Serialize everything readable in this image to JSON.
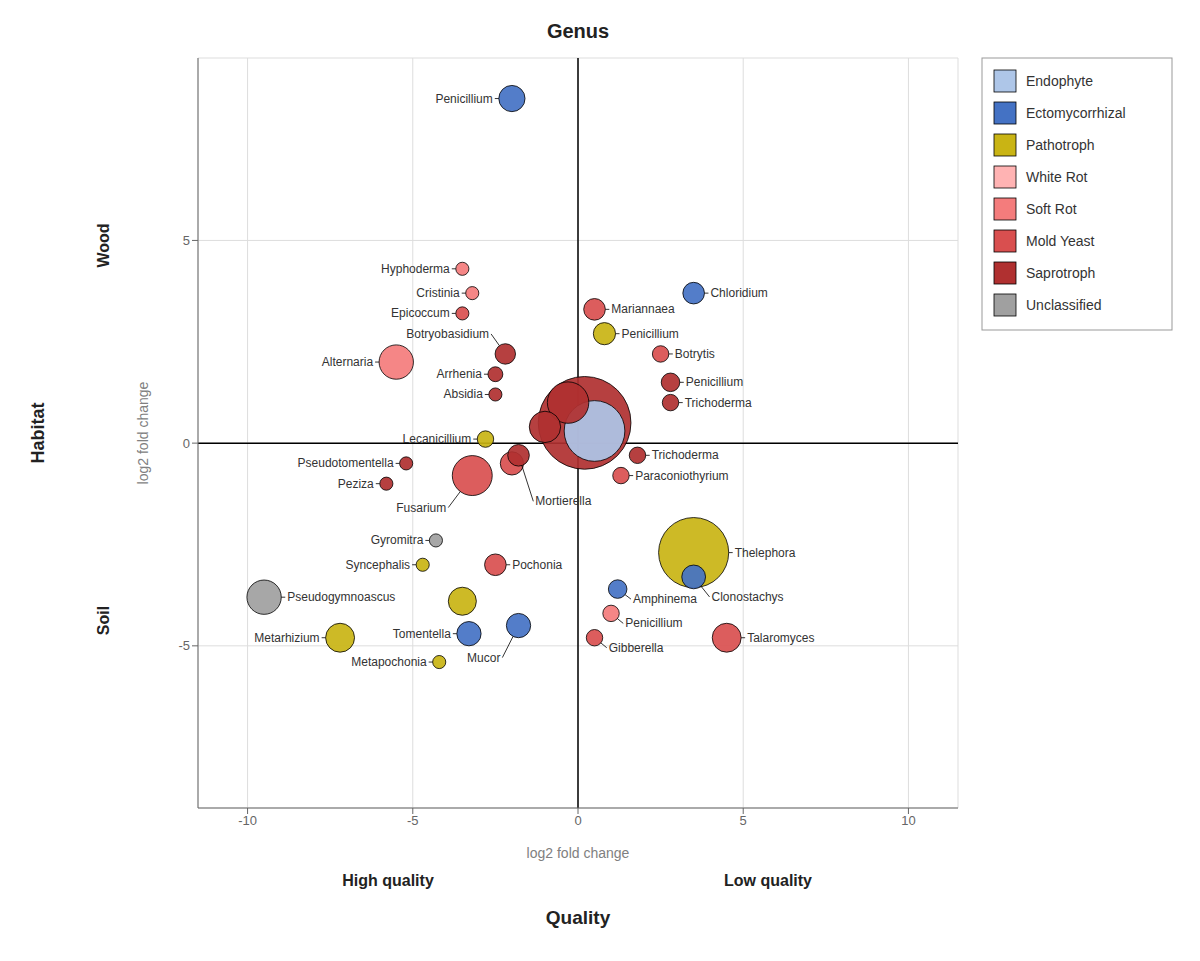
{
  "chart_data": {
    "type": "scatter",
    "title": "Genus",
    "xlabel": "log2 fold change",
    "ylabel": "log2 fold change",
    "outer_labels": {
      "left": "Habitat",
      "left_upper": "Wood",
      "left_lower": "Soil",
      "bottom_left": "High quality",
      "bottom_right": "Low quality",
      "bottom": "Quality"
    },
    "xlim": [
      -11.5,
      11.5
    ],
    "ylim": [
      -9.0,
      9.5
    ],
    "xticks": [
      -10,
      -5,
      0,
      5,
      10
    ],
    "yticks": [
      -5,
      0,
      5
    ],
    "grid": true,
    "legend": "right",
    "reference_lines": {
      "x": 0,
      "y": 0
    },
    "series": [
      {
        "name": "Endophyte",
        "color": "#aec6e8",
        "x": [
          0.5
        ],
        "y": [
          0.3
        ],
        "size": [
          1500
        ],
        "labels": [
          null
        ]
      },
      {
        "name": "Ectomycorrhizal",
        "color": "#4472c4",
        "x": [
          -2.0,
          3.5,
          3.5,
          1.2,
          -3.3,
          -1.8
        ],
        "y": [
          8.5,
          3.7,
          -3.3,
          -3.6,
          -4.7,
          -4.5
        ],
        "size": [
          280,
          190,
          230,
          140,
          240,
          240
        ],
        "labels": [
          "Penicillium",
          "Chloridium",
          "Clonostachys",
          "Amphinema",
          "Tomentella",
          "Mucor"
        ]
      },
      {
        "name": "Pathotroph",
        "color": "#c9b414",
        "x": [
          -2.8,
          0.8,
          -4.7,
          3.5,
          -7.2,
          -4.2,
          -3.5
        ],
        "y": [
          0.1,
          2.7,
          -3.0,
          -2.7,
          -4.8,
          -5.4,
          -3.9
        ],
        "size": [
          110,
          200,
          70,
          2000,
          340,
          70,
          320
        ],
        "labels": [
          "Lecanicillium",
          "Penicillium",
          "Syncephalis",
          "Thelephora",
          "Metarhizium",
          "Metapochonia",
          null
        ]
      },
      {
        "name": "White Rot",
        "color": "#ffb3b3",
        "x": [],
        "y": [],
        "size": [],
        "labels": []
      },
      {
        "name": "Soft Rot",
        "color": "#f47c7c",
        "x": [
          -3.5,
          -3.2,
          -5.5,
          1.0
        ],
        "y": [
          4.3,
          3.7,
          2.0,
          -4.2
        ],
        "size": [
          70,
          70,
          480,
          110
        ],
        "labels": [
          "Hyphoderma",
          "Cristinia",
          "Alternaria",
          "Penicillium"
        ]
      },
      {
        "name": "Mold Yeast",
        "color": "#d94f4f",
        "x": [
          -3.5,
          0.5,
          2.5,
          -3.2,
          1.3,
          -2.5,
          0.5,
          4.5,
          -2.0
        ],
        "y": [
          3.2,
          3.3,
          2.2,
          -0.8,
          -0.8,
          -3.0,
          -4.8,
          -4.8,
          -0.5
        ],
        "size": [
          70,
          190,
          110,
          650,
          110,
          190,
          110,
          340,
          220
        ],
        "labels": [
          "Epicoccum",
          "Mariannaea",
          "Botrytis",
          "Fusarium",
          "Paraconiothyrium",
          "Pochonia",
          "Gibberella",
          "Talaromyces",
          null
        ]
      },
      {
        "name": "Saprotroph",
        "color": "#b03030",
        "x": [
          -2.2,
          -2.5,
          -2.5,
          2.8,
          2.8,
          0.2,
          -0.3,
          -1.0,
          -1.8,
          -5.2,
          -5.8,
          1.8
        ],
        "y": [
          2.2,
          1.7,
          1.2,
          1.5,
          1.0,
          0.5,
          1.0,
          0.4,
          -0.3,
          -0.5,
          -1.0,
          -0.3
        ],
        "size": [
          170,
          90,
          70,
          140,
          110,
          3500,
          700,
          400,
          190,
          70,
          70,
          110
        ],
        "labels": [
          "Botryobasidium",
          "Arrhenia",
          "Absidia",
          "Penicillium",
          "Trichoderma",
          null,
          null,
          null,
          "Mortierella",
          "Pseudotomentella",
          "Peziza",
          "Trichoderma"
        ]
      },
      {
        "name": "Unclassified",
        "color": "#a0a0a0",
        "x": [
          -4.3,
          -9.5
        ],
        "y": [
          -2.4,
          -3.8
        ],
        "size": [
          70,
          480
        ],
        "labels": [
          "Gyromitra",
          "Pseudogymnoascus"
        ]
      }
    ]
  }
}
